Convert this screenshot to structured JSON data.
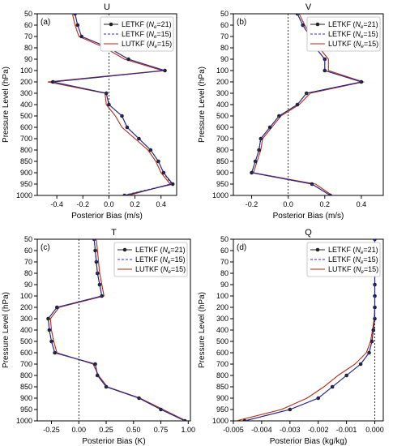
{
  "chart_data": [
    {
      "type": "line",
      "panel_label": "(a)",
      "title": "U",
      "xlabel": "Posterior Bias (m/s)",
      "ylabel": "Pressure Level (hPa)",
      "xlim": [
        -0.55,
        0.52
      ],
      "xticks": [
        -0.4,
        -0.2,
        0.0,
        0.2,
        0.4
      ],
      "xticklabels": [
        "-0.4",
        "-0.2",
        "0.0",
        "0.2",
        "0.4"
      ],
      "y_levels": [
        50,
        60,
        70,
        80,
        90,
        100,
        200,
        300,
        400,
        500,
        600,
        700,
        800,
        850,
        900,
        950,
        1000
      ],
      "zero_line": true,
      "legend": {
        "location": "top-right"
      },
      "series": [
        {
          "name": "LETKF (Ne=21)",
          "name_main": "LETKF (",
          "name_sub": "e",
          "name_rest": "=21)",
          "color": "#222222",
          "style": "solid",
          "marker": true,
          "values": [
            -0.26,
            -0.24,
            -0.21,
            0.0,
            0.15,
            0.43,
            -0.43,
            -0.02,
            0.0,
            0.1,
            0.14,
            0.23,
            0.32,
            0.38,
            0.42,
            0.49,
            0.12
          ]
        },
        {
          "name": "LETKF (Ne=15)",
          "name_main": "LETKF (",
          "name_sub": "e",
          "name_rest": "=15)",
          "color": "#2a2ad0",
          "style": "dashed",
          "marker": false,
          "values": [
            -0.26,
            -0.24,
            -0.21,
            0.0,
            0.15,
            0.43,
            -0.43,
            -0.02,
            0.0,
            0.1,
            0.14,
            0.23,
            0.32,
            0.38,
            0.42,
            0.48,
            0.11
          ]
        },
        {
          "name": "LUTKF (Ne=15)",
          "name_main": "LUTKF (",
          "name_sub": "e",
          "name_rest": "=15)",
          "color": "#b22a1a",
          "style": "solid",
          "marker": false,
          "values": [
            -0.28,
            -0.26,
            -0.23,
            -0.03,
            0.12,
            0.41,
            -0.47,
            -0.03,
            -0.02,
            0.05,
            0.1,
            0.2,
            0.3,
            0.36,
            0.4,
            0.47,
            0.15
          ]
        }
      ]
    },
    {
      "type": "line",
      "panel_label": "(b)",
      "title": "V",
      "xlabel": "Posterior Bias (m/s)",
      "ylabel": "Pressure Level (hPa)",
      "xlim": [
        -0.3,
        0.52
      ],
      "xticks": [
        -0.2,
        0.0,
        0.2,
        0.4
      ],
      "xticklabels": [
        "-0.2",
        "0.0",
        "0.2",
        "0.4"
      ],
      "y_levels": [
        50,
        60,
        70,
        80,
        90,
        100,
        200,
        300,
        400,
        500,
        600,
        700,
        800,
        850,
        900,
        950,
        1000
      ],
      "zero_line": true,
      "legend": {
        "location": "top-right"
      },
      "series": [
        {
          "name": "LETKF (Ne=21)",
          "name_main": "LETKF (",
          "name_sub": "e",
          "name_rest": "=21)",
          "color": "#222222",
          "style": "solid",
          "marker": true,
          "values": [
            0.05,
            0.08,
            0.12,
            0.15,
            0.2,
            0.2,
            0.4,
            0.1,
            0.05,
            -0.05,
            -0.1,
            -0.15,
            -0.16,
            -0.18,
            -0.2,
            0.13,
            0.23
          ]
        },
        {
          "name": "LETKF (Ne=15)",
          "name_main": "LETKF (",
          "name_sub": "e",
          "name_rest": "=15)",
          "color": "#2a2ad0",
          "style": "dashed",
          "marker": false,
          "values": [
            0.05,
            0.08,
            0.12,
            0.15,
            0.2,
            0.2,
            0.4,
            0.1,
            0.05,
            -0.05,
            -0.1,
            -0.15,
            -0.16,
            -0.18,
            -0.2,
            0.13,
            0.23
          ]
        },
        {
          "name": "LUTKF (Ne=15)",
          "name_main": "LUTKF (",
          "name_sub": "e",
          "name_rest": "=15)",
          "color": "#b22a1a",
          "style": "solid",
          "marker": false,
          "values": [
            0.06,
            0.09,
            0.13,
            0.17,
            0.22,
            0.22,
            0.41,
            0.12,
            0.06,
            -0.04,
            -0.09,
            -0.14,
            -0.15,
            -0.17,
            -0.19,
            0.15,
            0.24
          ]
        }
      ]
    },
    {
      "type": "line",
      "panel_label": "(c)",
      "title": "T",
      "xlabel": "Posterior Bias (K)",
      "ylabel": "Pressure Level (hPa)",
      "xlim": [
        -0.38,
        1.02
      ],
      "xticks": [
        -0.25,
        0.0,
        0.25,
        0.5,
        0.75,
        1.0
      ],
      "xticklabels": [
        "-0.25",
        "0.00",
        "0.25",
        "0.50",
        "0.75",
        "1.00"
      ],
      "y_levels": [
        50,
        60,
        70,
        80,
        90,
        100,
        200,
        300,
        400,
        500,
        600,
        700,
        800,
        850,
        900,
        950,
        1000
      ],
      "zero_line": true,
      "legend": {
        "location": "top-right"
      },
      "series": [
        {
          "name": "LETKF (Ne=21)",
          "name_main": "LETKF (",
          "name_sub": "e",
          "name_rest": "=21)",
          "color": "#222222",
          "style": "solid",
          "marker": true,
          "values": [
            0.14,
            0.15,
            0.16,
            0.17,
            0.19,
            0.21,
            -0.2,
            -0.28,
            -0.27,
            -0.25,
            -0.22,
            0.15,
            0.17,
            0.25,
            0.55,
            0.75,
            0.97
          ]
        },
        {
          "name": "LETKF (Ne=15)",
          "name_main": "LETKF (",
          "name_sub": "e",
          "name_rest": "=15)",
          "color": "#2a2ad0",
          "style": "dashed",
          "marker": false,
          "values": [
            0.14,
            0.15,
            0.16,
            0.17,
            0.19,
            0.21,
            -0.2,
            -0.28,
            -0.27,
            -0.25,
            -0.22,
            0.15,
            0.17,
            0.25,
            0.55,
            0.75,
            0.97
          ]
        },
        {
          "name": "LUTKF (Ne=15)",
          "name_main": "LUTKF (",
          "name_sub": "e",
          "name_rest": "=15)",
          "color": "#b22a1a",
          "style": "solid",
          "marker": false,
          "values": [
            0.16,
            0.17,
            0.18,
            0.19,
            0.21,
            0.23,
            -0.18,
            -0.26,
            -0.25,
            -0.23,
            -0.2,
            0.13,
            0.18,
            0.26,
            0.56,
            0.77,
            0.98
          ]
        }
      ]
    },
    {
      "type": "line",
      "panel_label": "(d)",
      "title": "Q",
      "xlabel": "Posterior Bias (kg/kg)",
      "ylabel": "Pressure Level (hPa)",
      "xlim": [
        -0.005,
        0.0003
      ],
      "xticks": [
        -0.005,
        -0.004,
        -0.003,
        -0.002,
        -0.001,
        0.0
      ],
      "xticklabels": [
        "-0.005",
        "-0.004",
        "-0.003",
        "-0.002",
        "-0.001",
        "0.000"
      ],
      "y_levels": [
        50,
        60,
        70,
        80,
        90,
        100,
        200,
        300,
        400,
        500,
        600,
        700,
        800,
        850,
        900,
        950,
        1000
      ],
      "zero_line": true,
      "legend": {
        "location": "top-right"
      },
      "series": [
        {
          "name": "LETKF (Ne=21)",
          "name_main": "LETKF (",
          "name_sub": "e",
          "name_rest": "=21)",
          "color": "#222222",
          "style": "solid",
          "marker": true,
          "values": [
            0.0,
            0.0,
            0.0,
            0.0,
            0.0,
            0.0,
            0.0,
            0.0,
            -5e-05,
            -0.0001,
            -0.0002,
            -0.0005,
            -0.001,
            -0.0015,
            -0.002,
            -0.003,
            -0.0046
          ]
        },
        {
          "name": "LETKF (Ne=15)",
          "name_main": "LETKF (",
          "name_sub": "e",
          "name_rest": "=15)",
          "color": "#2a2ad0",
          "style": "dashed",
          "marker": false,
          "values": [
            0.0,
            0.0,
            0.0,
            0.0,
            0.0,
            0.0,
            0.0,
            0.0,
            -5e-05,
            -0.0001,
            -0.0002,
            -0.0005,
            -0.001,
            -0.0015,
            -0.002,
            -0.003,
            -0.0046
          ]
        },
        {
          "name": "LUTKF (Ne=15)",
          "name_main": "LUTKF (",
          "name_sub": "e",
          "name_rest": "=15)",
          "color": "#b22a1a",
          "style": "solid",
          "marker": false,
          "values": [
            0.0,
            0.0,
            0.0,
            0.0,
            0.0,
            0.0,
            0.0,
            -2e-05,
            -8e-05,
            -0.00015,
            -0.0003,
            -0.0007,
            -0.0013,
            -0.0018,
            -0.0024,
            -0.0033,
            -0.0049
          ]
        }
      ]
    }
  ]
}
